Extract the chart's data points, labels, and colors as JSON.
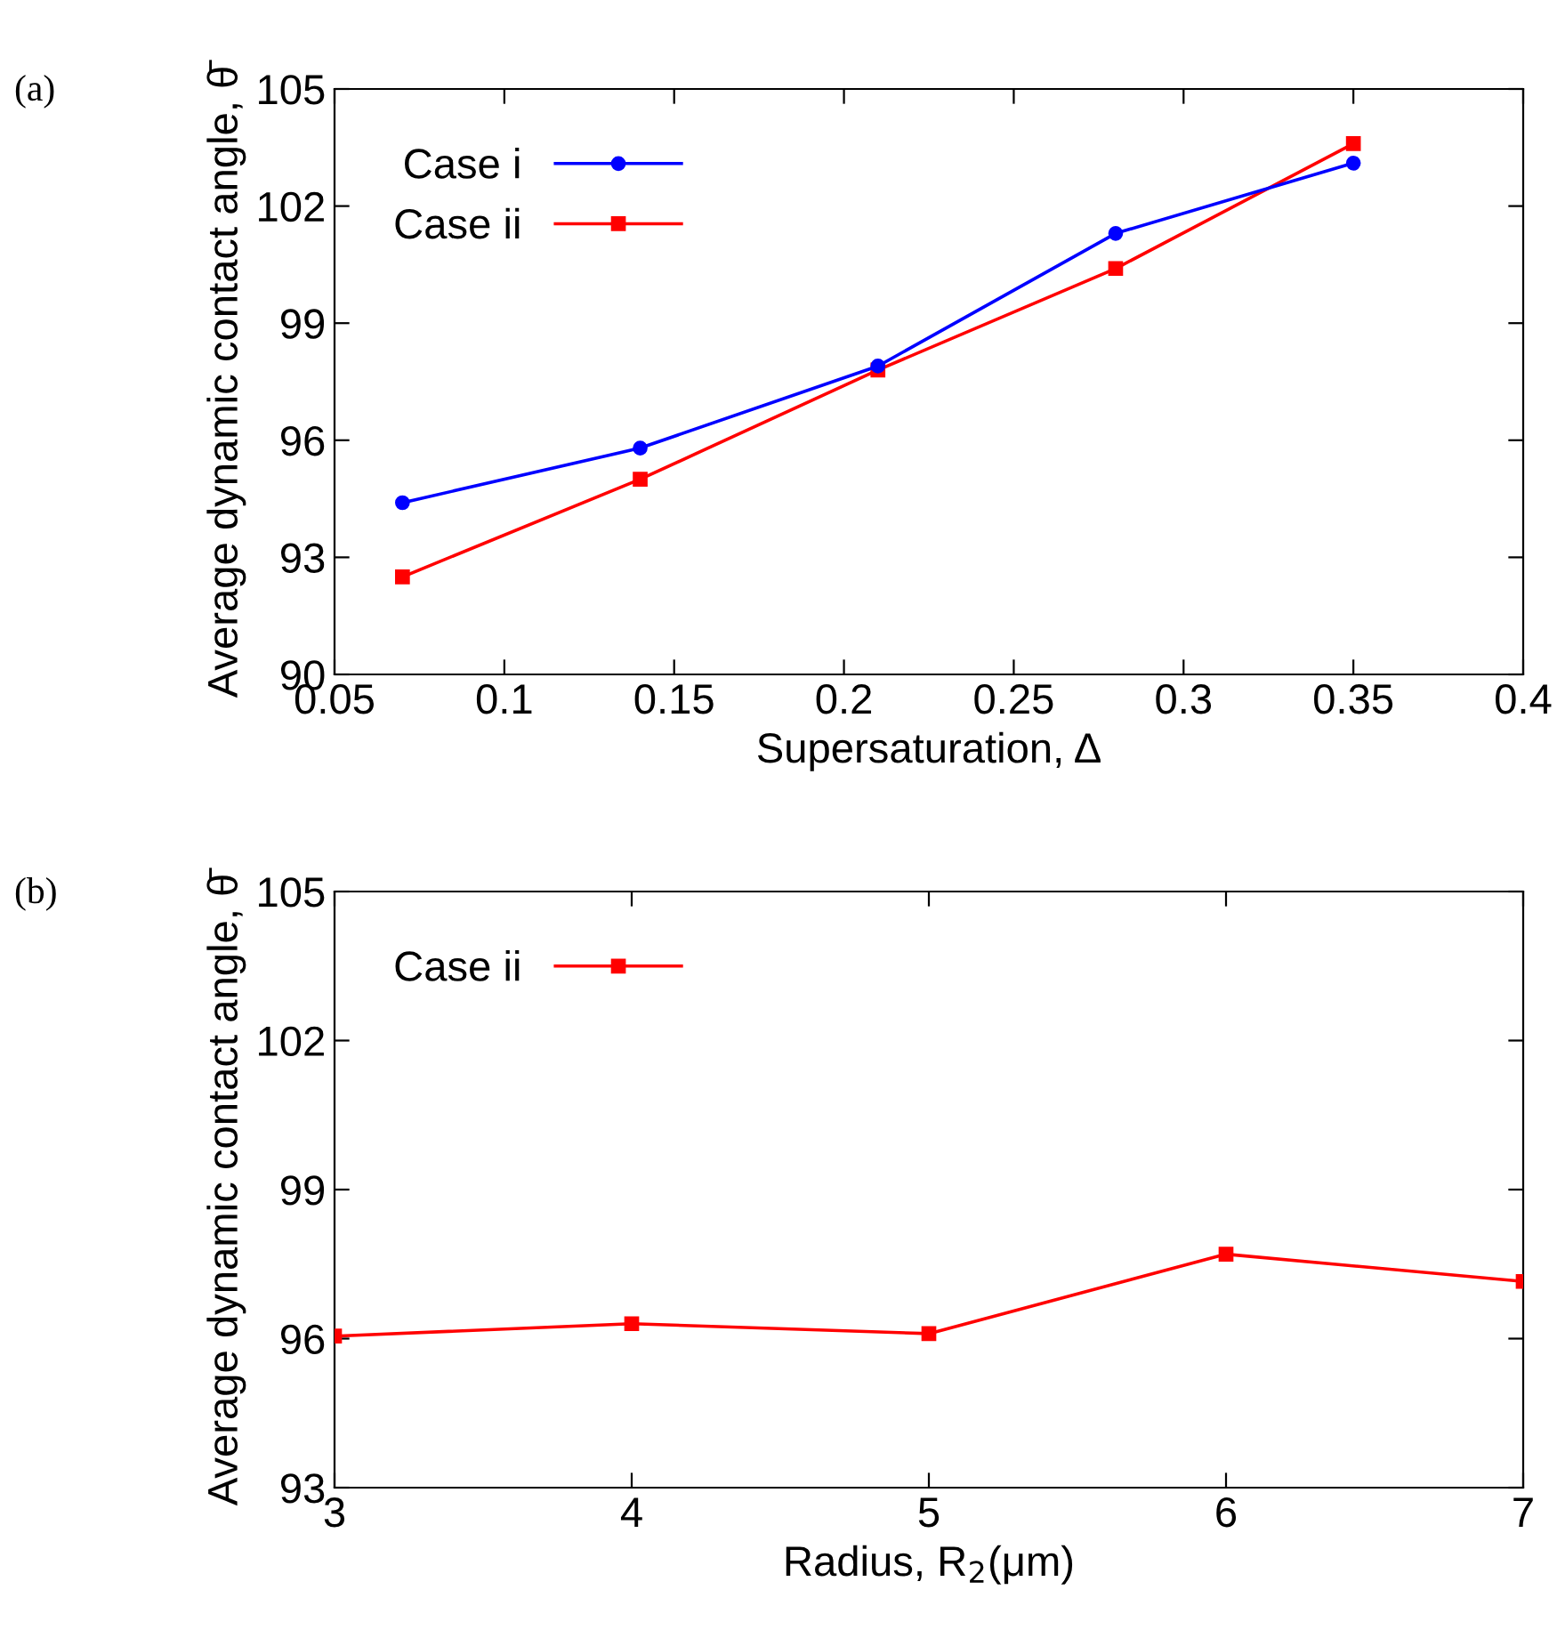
{
  "chart_data": [
    {
      "type": "line",
      "xlabel": "Supersaturation, Δ",
      "ylabel": "Average dynamic contact angle, θ̄",
      "annotations": [
        "(a)"
      ],
      "x": [
        0.07,
        0.14,
        0.21,
        0.28,
        0.35
      ],
      "series": [
        {
          "name": "Case i",
          "color": "#0000ff",
          "marker": "circle",
          "values": [
            94.4,
            95.8,
            97.9,
            101.3,
            103.1
          ]
        },
        {
          "name": "Case ii",
          "color": "#ff0000",
          "marker": "square",
          "values": [
            92.5,
            95.0,
            97.8,
            100.4,
            103.6
          ]
        }
      ],
      "xlim": [
        0.05,
        0.4
      ],
      "xticks": [
        0.05,
        0.1,
        0.15,
        0.2,
        0.25,
        0.3,
        0.35,
        0.4
      ],
      "ylim": [
        90,
        105
      ],
      "yticks": [
        90,
        93,
        96,
        99,
        102,
        105
      ],
      "grid": false,
      "legend": "top left"
    },
    {
      "type": "line",
      "xlabel": "Radius, R$_{2}$(μm)",
      "ylabel": "Average dynamic contact angle, θ̄",
      "annotations": [
        "(b)"
      ],
      "x": [
        3,
        4,
        5,
        6,
        7
      ],
      "series": [
        {
          "name": "Case ii",
          "color": "#ff0000",
          "marker": "square",
          "values": [
            96.05,
            96.3,
            96.1,
            97.7,
            97.15
          ]
        }
      ],
      "xlim": [
        3,
        7
      ],
      "xticks": [
        3,
        4,
        5,
        6,
        7
      ],
      "ylim": [
        93,
        105
      ],
      "yticks": [
        93,
        96,
        99,
        102,
        105
      ],
      "grid": false,
      "legend": "top left"
    }
  ]
}
